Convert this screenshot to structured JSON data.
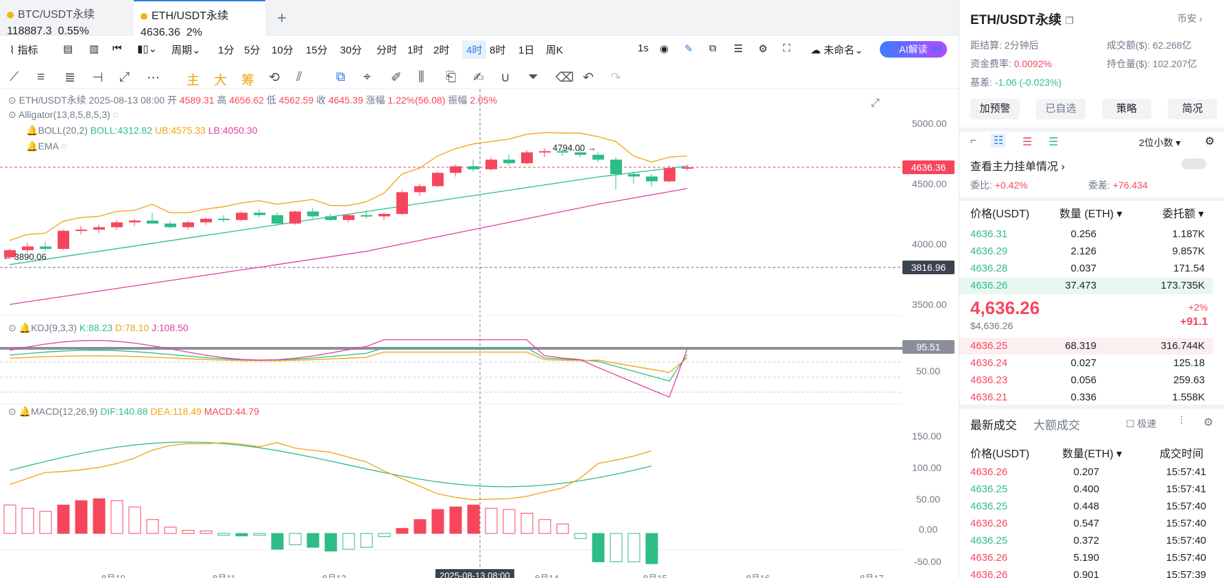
{
  "tabs": [
    {
      "name": "BTC/USDT永续",
      "price": "118887.3",
      "change": "0.55%"
    },
    {
      "name": "ETH/USDT永续",
      "price": "4636.36",
      "change": "2%"
    }
  ],
  "toolbar": {
    "indicator": "指标",
    "period": "周期",
    "intervals": [
      "1分",
      "5分",
      "10分",
      "15分",
      "30分",
      "分时",
      "1时",
      "2时",
      "4时",
      "8时",
      "1日",
      "周K"
    ],
    "selected": "4时",
    "speed": "1s",
    "layout": "未命名",
    "ai": "AI解读"
  },
  "drawtools": [
    "主",
    "大",
    "筹"
  ],
  "legend": {
    "symbol": "ETH/USDT永续",
    "date": "2025-08-13 08:00",
    "open_l": "开",
    "open": "4589.31",
    "high_l": "高",
    "high": "4656.62",
    "low_l": "低",
    "low": "4562.59",
    "close_l": "收",
    "close": "4645.39",
    "chg_l": "涨幅",
    "chg": "1.22%(56.08)",
    "amp_l": "振幅",
    "amp": "2.05%",
    "alligator": "Alligator(13,8,5,8,5,3)",
    "boll": "BOLL(20,2)",
    "boll_mid": "BOLL:4312.82",
    "boll_ub": "UB:4575.33",
    "boll_lb": "LB:4050.30",
    "ema": "EMA",
    "kdj": "KDJ(9,3,3)",
    "k": "K:88.23",
    "d": "D:78.10",
    "j": "J:108.50",
    "macd": "MACD(12,26,9)",
    "dif": "DIF:140.88",
    "dea": "DEA:118.49",
    "macd_v": "MACD:44.79"
  },
  "axis": {
    "price": [
      "5000.00",
      "4500.00",
      "4000.00",
      "3500.00"
    ],
    "kdj": [
      "50.00"
    ],
    "macd": [
      "150.00",
      "100.00",
      "50.00",
      "0.00",
      "-50.00"
    ],
    "x": [
      "8月10",
      "8月11",
      "8月12",
      "8月14",
      "8月15",
      "8月16",
      "8月17"
    ],
    "crosshair_date": "2025-08-13 08:00"
  },
  "labels": {
    "last": "4636.36",
    "cross": "3816.96",
    "kdj_cross": "95.51",
    "hi": "4794.00",
    "lo": "3890.06"
  },
  "chart_data": {
    "type": "candlestick",
    "candles": [
      [
        3890,
        3960,
        3880,
        3950
      ],
      [
        3950,
        4010,
        3930,
        3980
      ],
      [
        3980,
        4020,
        3940,
        3960
      ],
      [
        3960,
        4120,
        3950,
        4110
      ],
      [
        4110,
        4150,
        4080,
        4120
      ],
      [
        4120,
        4160,
        4090,
        4140
      ],
      [
        4140,
        4200,
        4120,
        4180
      ],
      [
        4180,
        4210,
        4150,
        4195
      ],
      [
        4195,
        4260,
        4170,
        4170
      ],
      [
        4170,
        4190,
        4130,
        4140
      ],
      [
        4140,
        4190,
        4120,
        4180
      ],
      [
        4180,
        4220,
        4160,
        4210
      ],
      [
        4210,
        4240,
        4180,
        4200
      ],
      [
        4200,
        4270,
        4190,
        4260
      ],
      [
        4260,
        4290,
        4220,
        4240
      ],
      [
        4240,
        4260,
        4160,
        4170
      ],
      [
        4170,
        4280,
        4160,
        4270
      ],
      [
        4270,
        4300,
        4210,
        4230
      ],
      [
        4230,
        4250,
        4190,
        4200
      ],
      [
        4200,
        4250,
        4180,
        4240
      ],
      [
        4240,
        4280,
        4210,
        4230
      ],
      [
        4230,
        4260,
        4200,
        4250
      ],
      [
        4250,
        4450,
        4240,
        4430
      ],
      [
        4430,
        4500,
        4400,
        4480
      ],
      [
        4480,
        4600,
        4470,
        4590
      ],
      [
        4590,
        4660,
        4560,
        4645
      ],
      [
        4645,
        4700,
        4600,
        4620
      ],
      [
        4620,
        4720,
        4610,
        4700
      ],
      [
        4700,
        4740,
        4650,
        4670
      ],
      [
        4670,
        4780,
        4660,
        4760
      ],
      [
        4760,
        4794,
        4720,
        4770
      ],
      [
        4770,
        4790,
        4730,
        4760
      ],
      [
        4760,
        4790,
        4720,
        4740
      ],
      [
        4740,
        4760,
        4680,
        4700
      ],
      [
        4700,
        4720,
        4450,
        4580
      ],
      [
        4580,
        4600,
        4500,
        4560
      ],
      [
        4560,
        4580,
        4480,
        4520
      ],
      [
        4520,
        4650,
        4510,
        4630
      ],
      [
        4630,
        4660,
        4610,
        4636
      ]
    ]
  },
  "side": {
    "title": "ETH/USDT永续",
    "exchange": "币安",
    "settle_l": "距结算:",
    "settle": "2分钟后",
    "vol_l": "成交额($):",
    "vol": "62.268亿",
    "fund_l": "资金费率:",
    "fund": "0.0092%",
    "oi_l": "持仓量($):",
    "oi": "102.207亿",
    "basis_l": "基差:",
    "basis": "-1.06 (-0.023%)",
    "buttons": [
      "加预警",
      "已自选",
      "策略",
      "简况"
    ],
    "decimals": "2位小数",
    "depth": "查看主力挂单情况",
    "wb_l": "委比:",
    "wb": "+0.42%",
    "wc_l": "委差:",
    "wc": "+76.434",
    "ob_head": [
      "价格(USDT)",
      "数量 (ETH)",
      "委托额"
    ],
    "asks": [
      [
        "4636.31",
        "0.256",
        "1.187K"
      ],
      [
        "4636.29",
        "2.126",
        "9.857K"
      ],
      [
        "4636.28",
        "0.037",
        "171.54"
      ],
      [
        "4636.26",
        "37.473",
        "173.735K"
      ]
    ],
    "mid": "4,636.26",
    "mid_usd": "$4,636.26",
    "mid_pct": "+2%",
    "mid_chg": "+91.1",
    "bids": [
      [
        "4636.25",
        "68.319",
        "316.744K"
      ],
      [
        "4636.24",
        "0.027",
        "125.18"
      ],
      [
        "4636.23",
        "0.056",
        "259.63"
      ],
      [
        "4636.21",
        "0.336",
        "1.558K"
      ]
    ],
    "trades_tabs": [
      "最新成交",
      "大额成交"
    ],
    "fast": "极速",
    "tr_head": [
      "价格(USDT)",
      "数量(ETH)",
      "成交时间"
    ],
    "trades": [
      [
        "4636.26",
        "0.207",
        "15:57:41",
        "r"
      ],
      [
        "4636.25",
        "0.400",
        "15:57:41",
        "g"
      ],
      [
        "4636.25",
        "0.448",
        "15:57:40",
        "g"
      ],
      [
        "4636.26",
        "0.547",
        "15:57:40",
        "r"
      ],
      [
        "4636.25",
        "0.372",
        "15:57:40",
        "g"
      ],
      [
        "4636.26",
        "5.190",
        "15:57:40",
        "r"
      ],
      [
        "4636.26",
        "0.901",
        "15:57:39",
        "r"
      ]
    ]
  },
  "colors": {
    "up": "#2ebd85",
    "down": "#f6465d",
    "accent": "#2d7be5"
  }
}
